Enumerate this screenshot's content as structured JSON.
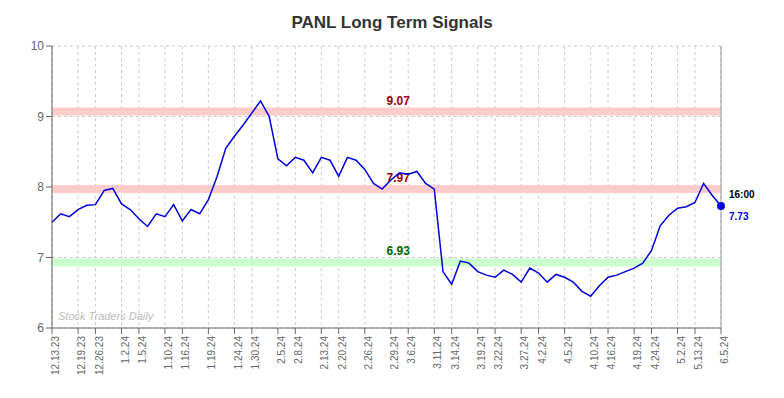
{
  "chart_data": {
    "type": "line",
    "title": "PANL Long Term Signals",
    "background_color": "#ffffff",
    "color": "#0000dd",
    "categories": [
      "12.13.23",
      null,
      null,
      "12.19.23",
      null,
      "12.26.23",
      null,
      null,
      "1.2.24",
      null,
      "1.5.24",
      null,
      null,
      "1.10.24",
      null,
      "1.16.24",
      null,
      null,
      "1.19.24",
      null,
      null,
      "1.24.24",
      null,
      "1.30.24",
      null,
      null,
      "2.5.24",
      null,
      "2.8.24",
      null,
      null,
      "2.13.24",
      null,
      "2.20.24",
      null,
      null,
      "2.26.24",
      null,
      null,
      "2.29.24",
      null,
      "3.6.24",
      null,
      null,
      "3.11.24",
      null,
      "3.14.24",
      null,
      null,
      "3.19.24",
      null,
      "3.22.24",
      null,
      null,
      "3.27.24",
      null,
      "4.2.24",
      null,
      null,
      "4.5.24",
      null,
      null,
      "4.10.24",
      null,
      "4.16.24",
      null,
      null,
      "4.19.24",
      null,
      "4.24.24",
      null,
      null,
      "5.2.24",
      null,
      "5.13.24",
      null,
      null,
      "6.5.24"
    ],
    "values": [
      7.5,
      7.62,
      7.58,
      7.68,
      7.74,
      7.75,
      7.95,
      7.98,
      7.76,
      7.68,
      7.55,
      7.44,
      7.62,
      7.58,
      7.75,
      7.52,
      7.68,
      7.62,
      7.82,
      8.15,
      8.55,
      8.72,
      8.88,
      9.05,
      9.22,
      9.0,
      8.4,
      8.3,
      8.42,
      8.38,
      8.2,
      8.42,
      8.38,
      8.15,
      8.42,
      8.38,
      8.25,
      8.05,
      7.97,
      8.1,
      8.2,
      8.18,
      8.22,
      8.05,
      7.97,
      6.8,
      6.62,
      6.95,
      6.92,
      6.8,
      6.75,
      6.72,
      6.82,
      6.76,
      6.65,
      6.85,
      6.78,
      6.65,
      6.76,
      6.72,
      6.65,
      6.52,
      6.45,
      6.6,
      6.72,
      6.75,
      6.8,
      6.85,
      6.92,
      7.1,
      7.45,
      7.6,
      7.7,
      7.72,
      7.78,
      8.05,
      7.88,
      7.73
    ],
    "ylim": [
      6.0,
      10.0
    ],
    "yticks": [
      6,
      7,
      8,
      9,
      10
    ],
    "grid": true,
    "hlines": [
      {
        "value": 9.07,
        "color": "#ffcccc",
        "label": "9.07",
        "label_color": "#990000"
      },
      {
        "value": 7.97,
        "color": "#ffcccc",
        "label": "7.97",
        "label_color": "#990000"
      },
      {
        "value": 6.93,
        "color": "#ccffcc",
        "label": "6.93",
        "label_color": "#006600"
      }
    ],
    "last_point": {
      "label": "16:00",
      "value": 7.73
    },
    "watermark": {
      "text": "Stock Traders Daily",
      "color": "#bbbbbb"
    }
  }
}
